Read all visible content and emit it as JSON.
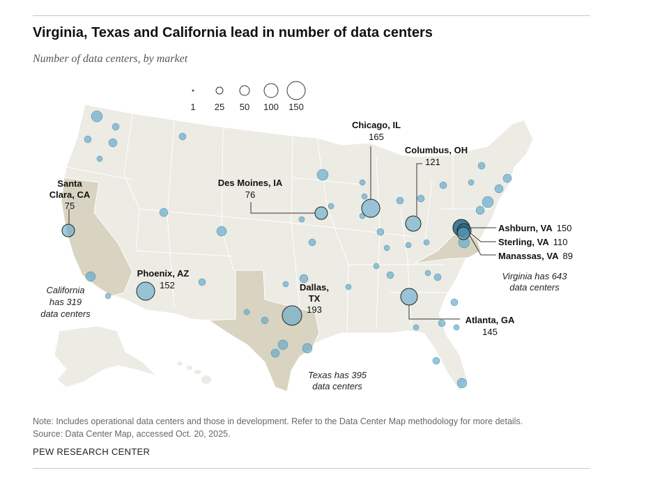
{
  "header": {
    "title": "Virginia, Texas and California lead in number of data centers",
    "subtitle": "Number of data centers, by market"
  },
  "legend": {
    "sizes": [
      "1",
      "25",
      "50",
      "100",
      "150"
    ]
  },
  "labels": {
    "santa_clara": {
      "l1": "Santa",
      "l2": "Clara, CA",
      "value": "75"
    },
    "phoenix": {
      "name": "Phoenix, AZ",
      "value": "152"
    },
    "des_moines": {
      "name": "Des Moines, IA",
      "value": "76"
    },
    "chicago": {
      "name": "Chicago, IL",
      "value": "165"
    },
    "columbus": {
      "name": "Columbus, OH",
      "value": "121"
    },
    "dallas": {
      "l1": "Dallas,",
      "l2": "TX",
      "value": "193"
    },
    "atlanta": {
      "name": "Atlanta, GA",
      "value": "145"
    },
    "ashburn": {
      "name": "Ashburn, VA",
      "value": "150"
    },
    "sterling": {
      "name": "Sterling, VA",
      "value": "110"
    },
    "manassas": {
      "name": "Manassas, VA",
      "value": "89"
    }
  },
  "state_notes": {
    "california": {
      "l1": "California",
      "l2": "has 319",
      "l3": "data centers"
    },
    "texas": {
      "l1": "Texas has 395",
      "l2": "data centers"
    },
    "virginia": {
      "l1": "Virginia has 643",
      "l2": "data centers"
    }
  },
  "footer": {
    "note": "Note: Includes operational data centers and those in development. Refer to the Data Center Map methodology for more details.",
    "source": "Source: Data Center Map, accessed Oct. 20, 2025.",
    "org": "PEW RESEARCH CENTER"
  },
  "colors": {
    "land": "#ecebe4",
    "highlight_state": "#d9d3c1",
    "state_border": "#ffffff",
    "bubble_fill": "#5fa8c9",
    "bubble_stroke": "#3c86ab",
    "dark_bubble": "#1e5f80"
  }
}
